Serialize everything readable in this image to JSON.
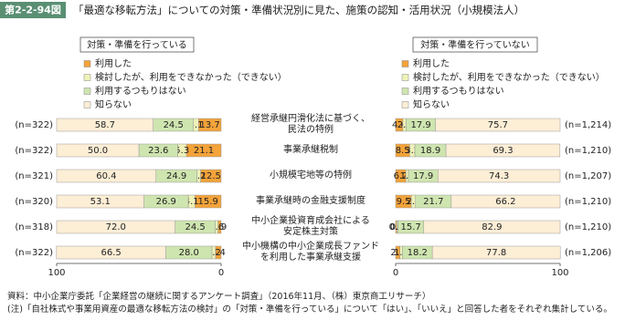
{
  "chart_data": {
    "type": "bar",
    "orientation": "horizontal",
    "stacked": true,
    "figure_label": "第2-2-94図",
    "title": "「最適な移転方法」についての対策・準備状況別に見た、施策の認知・活用状況（小規模法人）",
    "categories": [
      "経営承継円滑化法に基づく、\n民法の特例",
      "事業承継税制",
      "小規模宅地等の特例",
      "事業承継時の金融支援制度",
      "中小企業投資育成会社による\n安定株主対策",
      "中小機構の中小企業成長ファンド\nを利用した事業承継支援"
    ],
    "panels": [
      {
        "title": "対策・準備を行っている",
        "n_labels": [
          "(n=322)",
          "(n=322)",
          "(n=321)",
          "(n=320)",
          "(n=318)",
          "(n=322)"
        ],
        "xlim": [
          100,
          0
        ],
        "xticks": [
          100,
          0
        ],
        "series": [
          {
            "name": "利用した",
            "color": "#f3a33a",
            "values": [
              13.7,
              21.1,
              12.5,
              15.9,
              1.9,
              3.4
            ],
            "value_labels": [
              "13.7",
              "21.1",
              "12.5",
              "15.9",
              "1.9",
              "3.4"
            ]
          },
          {
            "name": "検討したが、利用をできなかった（できない）",
            "color": "#eef2b8",
            "values": [
              3.1,
              5.3,
              2.2,
              4.1,
              1.6,
              2.2
            ],
            "value_labels": [
              "3.1",
              "5.3",
              "2.2",
              "4.1",
              "1.6",
              "2.2"
            ]
          },
          {
            "name": "利用するつもりはない",
            "color": "#cfe5b0",
            "values": [
              24.5,
              23.6,
              24.9,
              26.9,
              24.5,
              28.0
            ],
            "value_labels": [
              "24.5",
              "23.6",
              "24.9",
              "26.9",
              "24.5",
              "28.0"
            ]
          },
          {
            "name": "知らない",
            "color": "#fdeed6",
            "values": [
              58.7,
              50.0,
              60.4,
              53.1,
              72.0,
              66.5
            ],
            "value_labels": [
              "58.7",
              "50.0",
              "60.4",
              "53.1",
              "72.0",
              "66.5"
            ]
          }
        ]
      },
      {
        "title": "対策・準備を行っていない",
        "n_labels": [
          "(n=1,214)",
          "(n=1,210)",
          "(n=1,207)",
          "(n=1,210)",
          "(n=1,210)",
          "(n=1,206)"
        ],
        "xlim": [
          0,
          100
        ],
        "xticks": [
          0,
          100
        ],
        "series": [
          {
            "name": "利用した",
            "color": "#f3a33a",
            "values": [
              4.4,
              8.5,
              6.2,
              9.5,
              0.7,
              2.6
            ],
            "value_labels": [
              "4.4",
              "8.5",
              "6.2",
              "9.5",
              "0.7",
              "2.6"
            ]
          },
          {
            "name": "検討したが、利用をできなかった（できない）",
            "color": "#eef2b8",
            "values": [
              2.0,
              3.2,
              1.6,
              2.6,
              0.7,
              1.5
            ],
            "value_labels": [
              "2.0",
              "3.2",
              "1.6",
              "2.6",
              "0.7",
              "1.5"
            ]
          },
          {
            "name": "利用するつもりはない",
            "color": "#cfe5b0",
            "values": [
              17.9,
              18.9,
              17.9,
              21.7,
              15.7,
              18.2
            ],
            "value_labels": [
              "17.9",
              "18.9",
              "17.9",
              "21.7",
              "15.7",
              "18.2"
            ]
          },
          {
            "name": "知らない",
            "color": "#fdeed6",
            "values": [
              75.7,
              69.3,
              74.3,
              66.2,
              82.9,
              77.8
            ],
            "value_labels": [
              "75.7",
              "69.3",
              "74.3",
              "66.2",
              "82.9",
              "77.8"
            ]
          }
        ]
      }
    ],
    "source": "資料：中小企業庁委託「企業経営の継続に関するアンケート調査」（2016年11月、（株）東京商工リサーチ）",
    "note": "(注)「自社株式や事業用資産の最適な移転方法の検討」の「対策・準備を行っている」について「はい」、「いいえ」と回答した者をそれぞれ集計している。"
  }
}
